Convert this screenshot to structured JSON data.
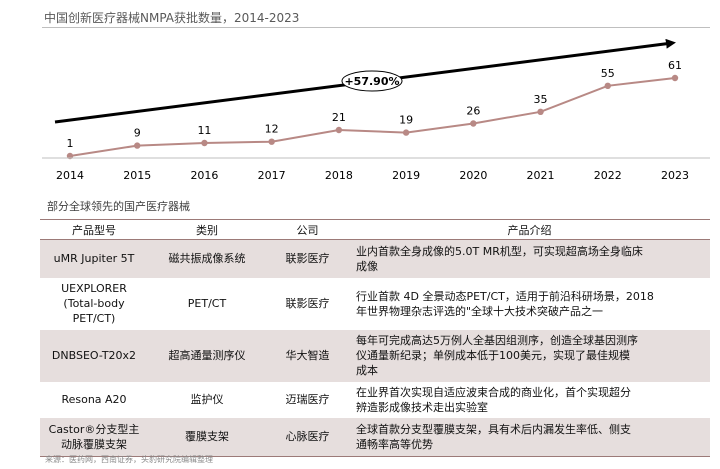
{
  "page": {
    "chart_title": "中国创新医疗器械NMPA获批数量，2014-2023",
    "section_title": "部分全球领先的国产医疗器械",
    "source": "来源：医药网，西南证券，头豹研究院编辑整理"
  },
  "chart_data": {
    "type": "line",
    "title": "中国创新医疗器械NMPA获批数量，2014-2023",
    "x": [
      "2014",
      "2015",
      "2016",
      "2017",
      "2018",
      "2019",
      "2020",
      "2021",
      "2022",
      "2023"
    ],
    "series": [
      {
        "values": [
          1,
          9,
          11,
          12,
          21,
          19,
          26,
          35,
          55,
          61
        ]
      }
    ],
    "ylim": [
      0,
      70
    ],
    "y_axis_visible": false,
    "grid": false,
    "legend": "none",
    "data_labels": true,
    "annotation": {
      "text": "+57.90%",
      "style": "upward trend arrow with circled growth label"
    },
    "colors": {
      "line": "#b88985",
      "marker": "#b88985",
      "arrow": "#000000",
      "axis": "#bfbfbf"
    }
  },
  "table": {
    "headers": [
      "产品型号",
      "类别",
      "公司",
      "产品介绍"
    ],
    "rows": [
      {
        "model": [
          "uMR Jupiter 5T"
        ],
        "category": "磁共振成像系统",
        "company": "联影医疗",
        "desc": [
          "业内首款全身成像的5.0T MR机型，可实现超高场全身临床",
          "成像"
        ]
      },
      {
        "model": [
          "UEXPLORER",
          "(Total-body",
          "PET/CT)"
        ],
        "category": "PET/CT",
        "company": "联影医疗",
        "desc": [
          "行业首款 4D 全景动态PET/CT，适用于前沿科研场景，2018",
          "年世界物理杂志评选的\"全球十大技术突破产品之一"
        ]
      },
      {
        "model": [
          "DNBSEO-T20x2"
        ],
        "category": "超高通量测序仪",
        "company": "华大智造",
        "desc": [
          "每年可完成高达5万例人全基因组测序，创造全球基因测序",
          "仪通量新纪录；单例成本低于100美元，实现了最佳规模",
          "成本"
        ]
      },
      {
        "model": [
          "Resona A20"
        ],
        "category": "监护仪",
        "company": "迈瑞医疗",
        "desc": [
          "在业界首次实现自适应波束合成的商业化，首个实现超分",
          "辨造影成像技术走出实验室"
        ]
      },
      {
        "model": [
          "Castor®分支型主",
          "动脉覆膜支架"
        ],
        "category": "覆膜支架",
        "company": "心脉医疗",
        "desc": [
          "全球首款分支型覆膜支架，具有术后内漏发生率低、侧支",
          "通畅率高等优势"
        ]
      }
    ]
  }
}
